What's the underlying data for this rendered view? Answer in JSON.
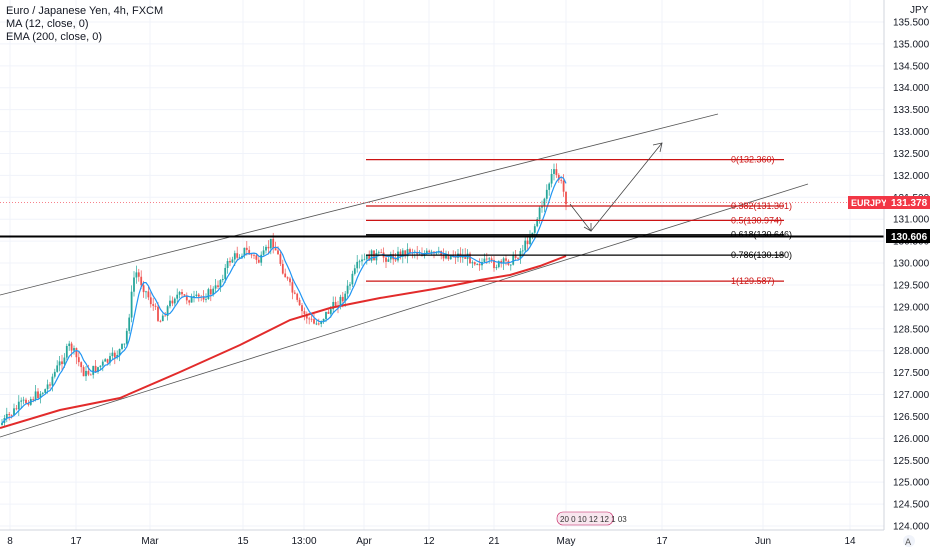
{
  "legend": {
    "symbol": "Euro / Japanese Yen, 4h, FXCM",
    "ma": "MA (12, close, 0)",
    "ema": "EMA (200, close, 0)"
  },
  "currency_label": "JPY",
  "price_tags": {
    "current_symbol": "EURJPY",
    "current_value": "131.378",
    "level_value": "130.606"
  },
  "marker_text": "20 0 10 12 12 1 03",
  "colors": {
    "fib": "#cc1414",
    "ema": "#e22b2b",
    "ma": "#2196f3",
    "channel": "#555555",
    "level": "#000000",
    "up_candle": "#26a69a",
    "down_candle": "#ef5350",
    "tag_red": "#f23645"
  },
  "chart_data": {
    "type": "candlestick",
    "title": "Euro / Japanese Yen, 4h, FXCM",
    "y_ticks": [
      "135.500",
      "135.000",
      "134.500",
      "134.000",
      "133.500",
      "133.000",
      "132.500",
      "132.000",
      "131.500",
      "131.000",
      "130.500",
      "130.000",
      "129.500",
      "129.000",
      "128.500",
      "128.000",
      "127.500",
      "127.000",
      "126.500",
      "126.000",
      "125.500",
      "125.000",
      "124.500",
      "124.000"
    ],
    "ylim": [
      123.9,
      135.7
    ],
    "x_ticks": [
      "8",
      "17",
      "Mar",
      "15",
      "13:00",
      "Apr",
      "12",
      "21",
      "May",
      "17",
      "Jun",
      "14"
    ],
    "fib_levels": [
      {
        "label": "0(132.360)",
        "value": 132.36
      },
      {
        "label": "0.382(131.301)",
        "value": 131.301
      },
      {
        "label": "0.5(130.974)",
        "value": 130.974
      },
      {
        "label": "0.618(130.646)",
        "value": 130.646
      },
      {
        "label": "0.786(130.180)",
        "value": 130.18
      },
      {
        "label": "1(129.587)",
        "value": 129.587
      }
    ],
    "horizontal_level": 130.606,
    "current_price": 131.378
  }
}
